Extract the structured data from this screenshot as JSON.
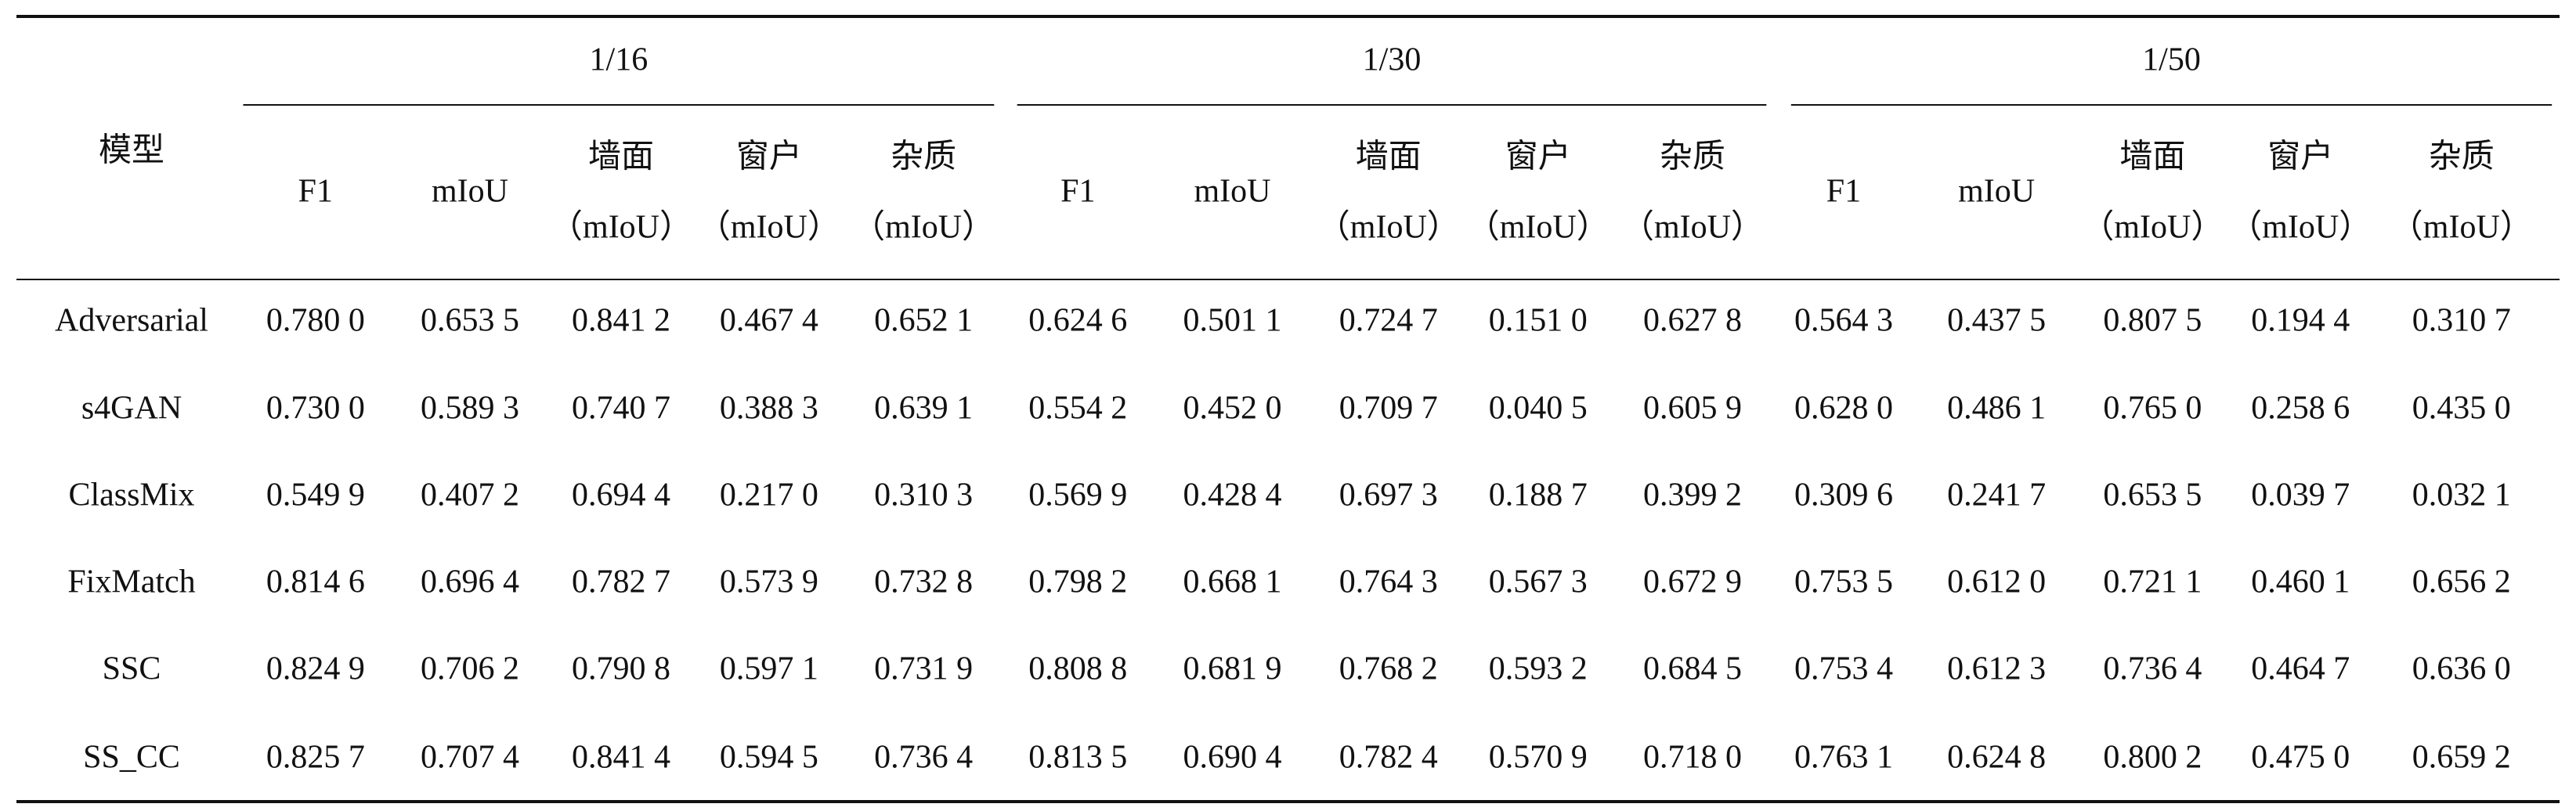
{
  "table": {
    "header": {
      "model": "模型",
      "groups": [
        {
          "label": "1/16",
          "columns": [
            {
              "name": "F1"
            },
            {
              "name": "mIoU"
            },
            {
              "name": "墙面",
              "unit": "（mIoU）"
            },
            {
              "name": "窗户",
              "unit": "（mIoU）"
            },
            {
              "name": "杂质",
              "unit": "（mIoU）"
            }
          ]
        },
        {
          "label": "1/30",
          "columns": [
            {
              "name": "F1"
            },
            {
              "name": "mIoU"
            },
            {
              "name": "墙面",
              "unit": "（mIoU）"
            },
            {
              "name": "窗户",
              "unit": "（mIoU）"
            },
            {
              "name": "杂质",
              "unit": "（mIoU）"
            }
          ]
        },
        {
          "label": "1/50",
          "columns": [
            {
              "name": "F1"
            },
            {
              "name": "mIoU"
            },
            {
              "name": "墙面",
              "unit": "（mIoU）"
            },
            {
              "name": "窗户",
              "unit": "（mIoU）"
            },
            {
              "name": "杂质",
              "unit": "（mIoU）"
            }
          ]
        }
      ]
    },
    "rows": [
      {
        "model": "Adversarial",
        "values": [
          "0.780 0",
          "0.653 5",
          "0.841 2",
          "0.467 4",
          "0.652 1",
          "0.624 6",
          "0.501 1",
          "0.724 7",
          "0.151 0",
          "0.627 8",
          "0.564 3",
          "0.437 5",
          "0.807 5",
          "0.194 4",
          "0.310 7"
        ]
      },
      {
        "model": "s4GAN",
        "values": [
          "0.730 0",
          "0.589 3",
          "0.740 7",
          "0.388 3",
          "0.639 1",
          "0.554 2",
          "0.452 0",
          "0.709 7",
          "0.040 5",
          "0.605 9",
          "0.628 0",
          "0.486 1",
          "0.765 0",
          "0.258 6",
          "0.435 0"
        ]
      },
      {
        "model": "ClassMix",
        "values": [
          "0.549 9",
          "0.407 2",
          "0.694 4",
          "0.217 0",
          "0.310 3",
          "0.569 9",
          "0.428 4",
          "0.697 3",
          "0.188 7",
          "0.399 2",
          "0.309 6",
          "0.241 7",
          "0.653 5",
          "0.039 7",
          "0.032 1"
        ]
      },
      {
        "model": "FixMatch",
        "values": [
          "0.814 6",
          "0.696 4",
          "0.782 7",
          "0.573 9",
          "0.732 8",
          "0.798 2",
          "0.668 1",
          "0.764 3",
          "0.567 3",
          "0.672 9",
          "0.753 5",
          "0.612 0",
          "0.721 1",
          "0.460 1",
          "0.656 2"
        ]
      },
      {
        "model": "SSC",
        "values": [
          "0.824 9",
          "0.706 2",
          "0.790 8",
          "0.597 1",
          "0.731 9",
          "0.808 8",
          "0.681 9",
          "0.768 2",
          "0.593 2",
          "0.684 5",
          "0.753 4",
          "0.612 3",
          "0.736 4",
          "0.464 7",
          "0.636 0"
        ]
      },
      {
        "model": "SS_CC",
        "values": [
          "0.825 7",
          "0.707 4",
          "0.841 4",
          "0.594 5",
          "0.736 4",
          "0.813 5",
          "0.690 4",
          "0.782 4",
          "0.570 9",
          "0.718 0",
          "0.763 1",
          "0.624 8",
          "0.800 2",
          "0.475 0",
          "0.659 2"
        ]
      }
    ]
  }
}
